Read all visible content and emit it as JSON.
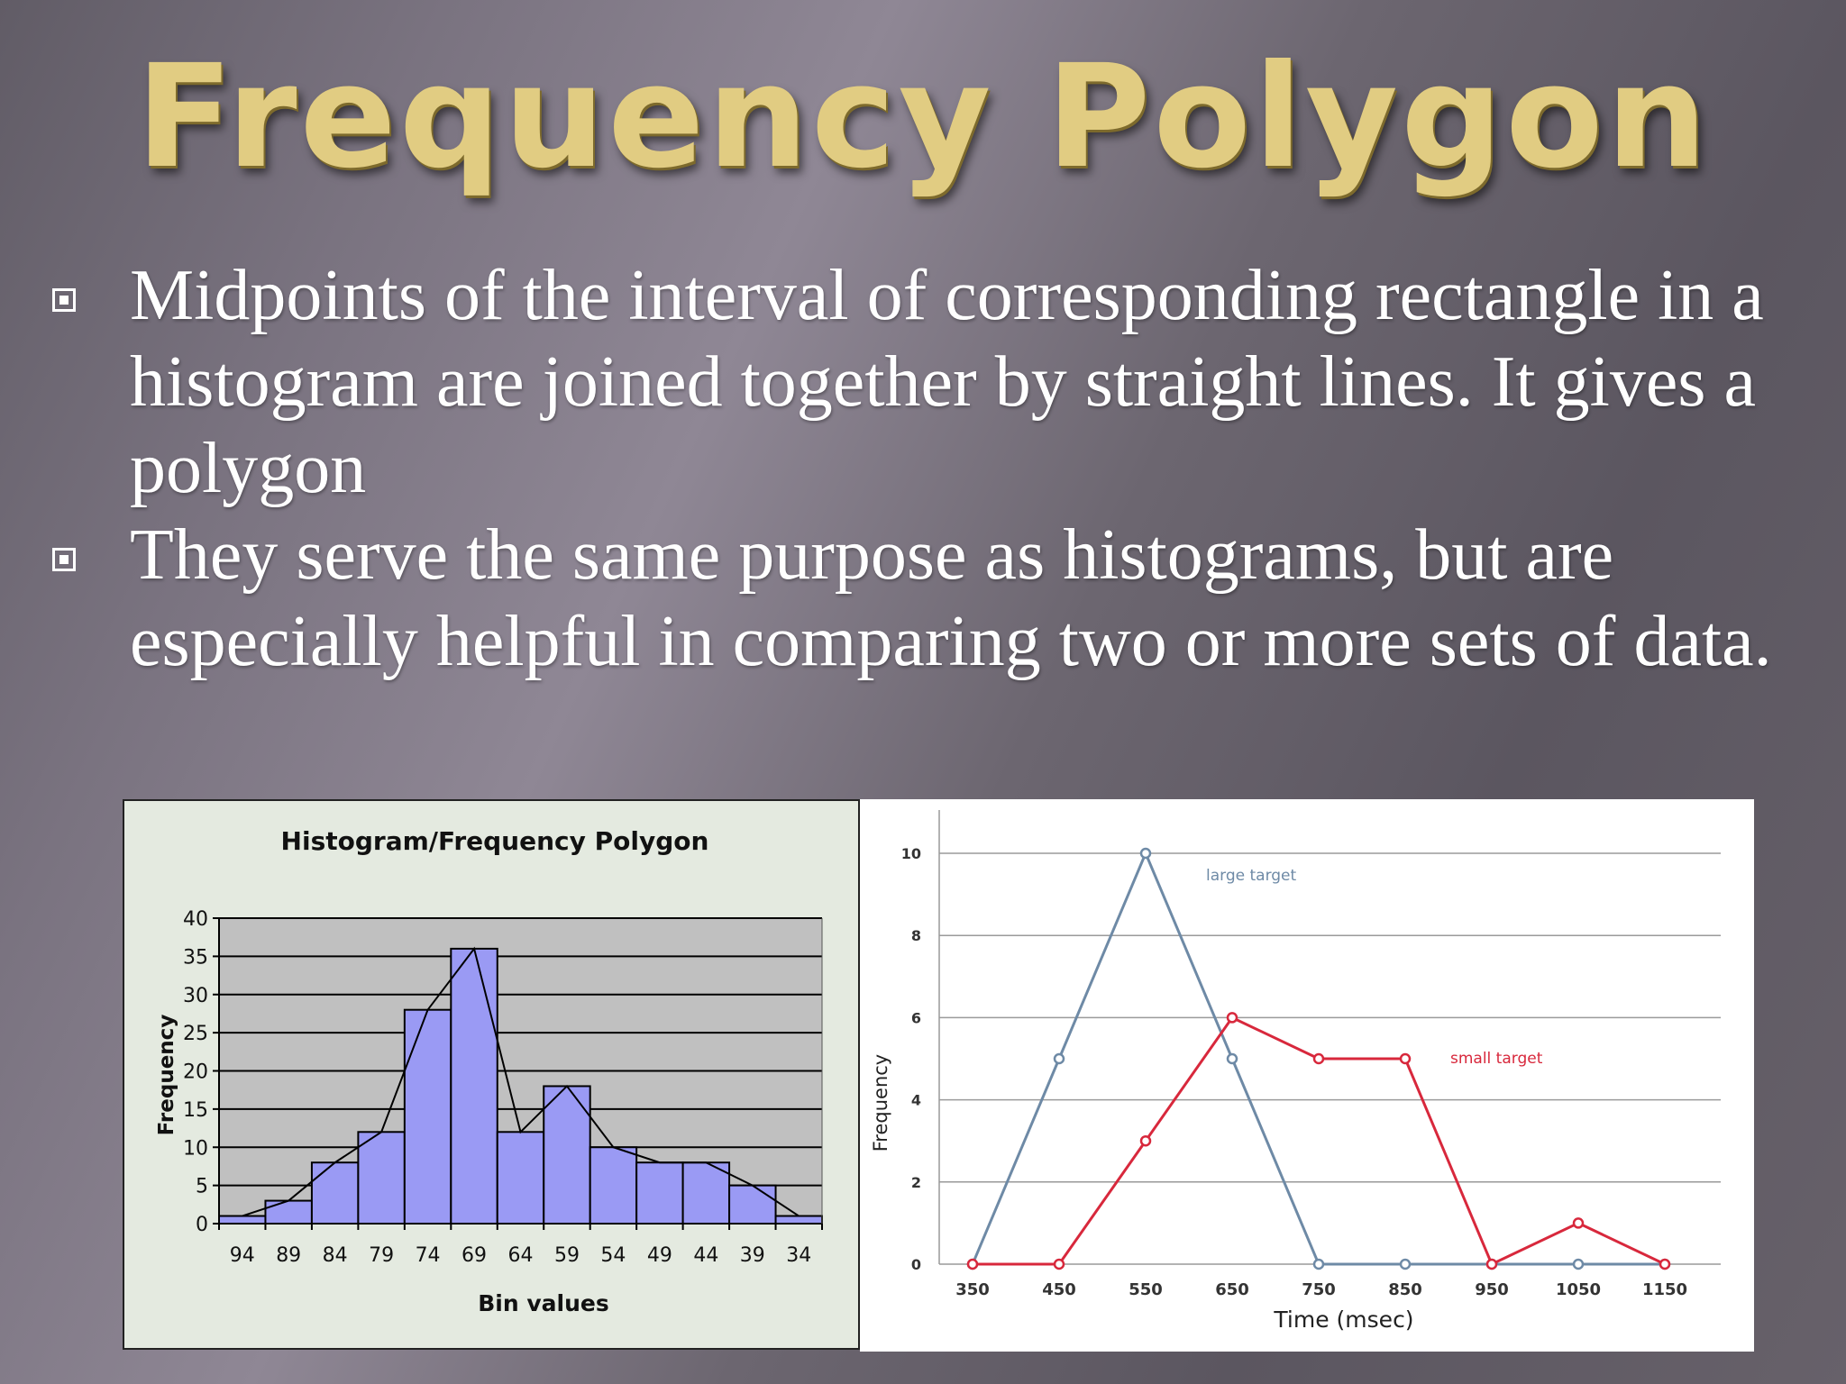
{
  "slide": {
    "title": "Frequency Polygon",
    "bullets": [
      {
        "text": "Midpoints of the interval of corresponding rectangle in a histogram are joined together by straight lines. It gives a polygon",
        "icon": "square-bullet-icon"
      },
      {
        "text": "They serve the same purpose as histograms, but are especially helpful in comparing two or more sets of data.",
        "icon": "square-bullet-icon"
      }
    ]
  },
  "chart_data": [
    {
      "type": "bar",
      "title": "Histogram/Frequency Polygon",
      "xlabel": "Bin values",
      "ylabel": "Frequency",
      "categories": [
        "94",
        "89",
        "84",
        "79",
        "74",
        "69",
        "64",
        "59",
        "54",
        "49",
        "44",
        "39",
        "34"
      ],
      "values": [
        1,
        3,
        8,
        12,
        28,
        36,
        12,
        18,
        10,
        8,
        8,
        5,
        1
      ],
      "overlay_line": true,
      "ylim": [
        0,
        40
      ],
      "yticks": [
        0,
        5,
        10,
        15,
        20,
        25,
        30,
        35,
        40
      ],
      "grid": true,
      "colors": {
        "bar": "#9a9af4",
        "plot_bg": "#c0c0c0",
        "panel_bg": "#e4eae0",
        "line": "#000000"
      }
    },
    {
      "type": "line",
      "title": "",
      "xlabel": "Time (msec)",
      "ylabel": "Frequency",
      "x": [
        350,
        450,
        550,
        650,
        750,
        850,
        950,
        1050,
        1150
      ],
      "series": [
        {
          "name": "large target",
          "values": [
            0,
            5,
            10,
            5,
            0,
            0,
            0,
            0,
            0
          ],
          "color": "#6e8aa6"
        },
        {
          "name": "small target",
          "values": [
            0,
            0,
            3,
            6,
            5,
            5,
            0,
            1,
            0
          ],
          "color": "#d8283c"
        }
      ],
      "ylim": [
        0,
        10
      ],
      "yticks": [
        0,
        2,
        4,
        6,
        8,
        10
      ],
      "grid": true
    }
  ]
}
